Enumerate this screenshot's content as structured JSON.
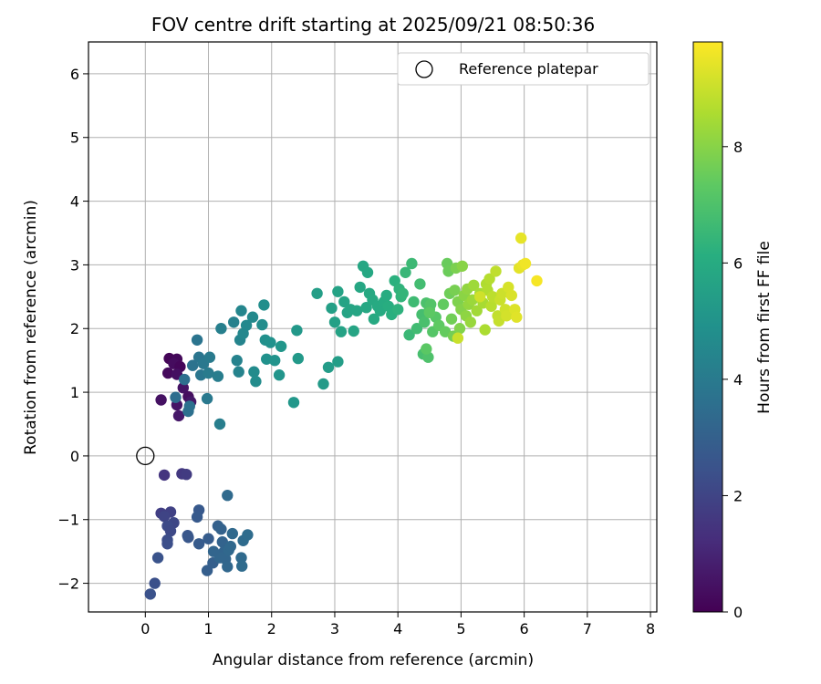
{
  "chart_data": {
    "type": "scatter",
    "title": "FOV centre drift starting at 2025/09/21 08:50:36",
    "xlabel": "Angular distance from reference (arcmin)",
    "ylabel": "Rotation from reference (arcmin)",
    "colorbar_label": "Hours from first FF file",
    "xlim": [
      -0.9,
      8.1
    ],
    "ylim": [
      -2.45,
      6.5
    ],
    "x_ticks": [
      0,
      1,
      2,
      3,
      4,
      5,
      6,
      7,
      8
    ],
    "y_ticks": [
      -2,
      -1,
      0,
      1,
      2,
      3,
      4,
      5,
      6
    ],
    "x_tick_labels": [
      "0",
      "1",
      "2",
      "3",
      "4",
      "5",
      "6",
      "7",
      "8"
    ],
    "y_tick_labels": [
      "−2",
      "−1",
      "0",
      "1",
      "2",
      "3",
      "4",
      "5",
      "6"
    ],
    "colorbar_range": [
      0,
      9.8
    ],
    "colorbar_ticks": [
      0,
      2,
      4,
      6,
      8
    ],
    "colorbar_tick_labels": [
      "0",
      "2",
      "4",
      "6",
      "8"
    ],
    "colormap": "viridis",
    "grid": true,
    "legend": {
      "position": "top-right",
      "entries": [
        "Reference platepar"
      ]
    },
    "reference_point": {
      "x": 0,
      "y": 0,
      "label": "Reference platepar"
    },
    "series": [
      {
        "name": "FOV centre drift",
        "points": [
          [
            0.38,
            1.53,
            0.1
          ],
          [
            0.5,
            1.52,
            0.2
          ],
          [
            0.45,
            1.45,
            0.3
          ],
          [
            0.55,
            1.4,
            0.15
          ],
          [
            0.36,
            1.3,
            0.25
          ],
          [
            0.5,
            1.28,
            0.4
          ],
          [
            0.6,
            1.07,
            0.5
          ],
          [
            0.25,
            0.88,
            0.45
          ],
          [
            0.68,
            0.93,
            0.35
          ],
          [
            0.72,
            0.85,
            0.6
          ],
          [
            0.5,
            0.8,
            0.55
          ],
          [
            0.53,
            0.63,
            0.65
          ],
          [
            0.58,
            -0.28,
            1.6
          ],
          [
            0.65,
            -0.29,
            1.7
          ],
          [
            0.3,
            -0.3,
            1.5
          ],
          [
            0.4,
            -0.88,
            1.9
          ],
          [
            0.25,
            -0.9,
            1.8
          ],
          [
            0.3,
            -0.95,
            2.0
          ],
          [
            0.45,
            -1.05,
            2.1
          ],
          [
            0.35,
            -1.1,
            2.2
          ],
          [
            0.4,
            -1.18,
            2.15
          ],
          [
            0.35,
            -1.32,
            2.3
          ],
          [
            0.35,
            -1.38,
            2.35
          ],
          [
            0.2,
            -1.6,
            2.5
          ],
          [
            0.15,
            -2.0,
            2.4
          ],
          [
            0.08,
            -2.17,
            2.45
          ],
          [
            0.67,
            -1.25,
            2.6
          ],
          [
            0.68,
            -1.28,
            2.65
          ],
          [
            0.85,
            -0.85,
            2.7
          ],
          [
            0.82,
            -0.96,
            2.75
          ],
          [
            0.85,
            -1.38,
            2.8
          ],
          [
            1.0,
            -1.3,
            2.85
          ],
          [
            0.98,
            -1.8,
            2.9
          ],
          [
            1.07,
            -1.68,
            2.95
          ],
          [
            1.15,
            -1.1,
            3.0
          ],
          [
            1.2,
            -1.15,
            3.05
          ],
          [
            1.22,
            -1.35,
            3.1
          ],
          [
            1.25,
            -1.5,
            3.15
          ],
          [
            1.18,
            -1.6,
            3.2
          ],
          [
            1.27,
            -1.62,
            3.22
          ],
          [
            1.3,
            -1.74,
            3.25
          ],
          [
            1.32,
            -1.48,
            3.28
          ],
          [
            1.35,
            -1.42,
            3.3
          ],
          [
            1.38,
            -1.22,
            3.32
          ],
          [
            1.3,
            -0.62,
            3.35
          ],
          [
            1.52,
            -1.6,
            3.38
          ],
          [
            1.53,
            -1.73,
            3.4
          ],
          [
            1.55,
            -1.33,
            3.42
          ],
          [
            1.62,
            -1.24,
            3.45
          ],
          [
            1.08,
            -1.5,
            3.18
          ],
          [
            0.48,
            0.92,
            3.5
          ],
          [
            0.62,
            1.2,
            3.55
          ],
          [
            0.68,
            0.7,
            3.6
          ],
          [
            0.7,
            0.78,
            3.65
          ],
          [
            0.75,
            1.42,
            3.7
          ],
          [
            0.82,
            1.82,
            3.75
          ],
          [
            0.85,
            1.55,
            3.8
          ],
          [
            0.88,
            1.27,
            3.85
          ],
          [
            0.92,
            1.45,
            3.9
          ],
          [
            0.98,
            0.9,
            3.95
          ],
          [
            1.02,
            1.55,
            4.0
          ],
          [
            1.0,
            1.3,
            4.05
          ],
          [
            1.15,
            1.25,
            4.1
          ],
          [
            1.18,
            0.5,
            4.15
          ],
          [
            1.2,
            2.0,
            4.2
          ],
          [
            1.4,
            2.1,
            4.25
          ],
          [
            1.45,
            1.5,
            4.3
          ],
          [
            1.48,
            1.32,
            4.35
          ],
          [
            1.5,
            1.82,
            4.4
          ],
          [
            1.52,
            2.28,
            4.45
          ],
          [
            1.55,
            1.92,
            4.5
          ],
          [
            1.6,
            2.05,
            4.55
          ],
          [
            1.7,
            2.18,
            4.6
          ],
          [
            1.72,
            1.32,
            4.65
          ],
          [
            1.75,
            1.17,
            4.7
          ],
          [
            1.85,
            2.06,
            4.75
          ],
          [
            1.88,
            2.37,
            4.8
          ],
          [
            1.9,
            1.82,
            4.85
          ],
          [
            1.92,
            1.52,
            4.9
          ],
          [
            1.98,
            1.78,
            4.95
          ],
          [
            2.05,
            1.5,
            5.0
          ],
          [
            2.12,
            1.27,
            5.05
          ],
          [
            2.15,
            1.72,
            5.1
          ],
          [
            2.35,
            0.84,
            5.15
          ],
          [
            2.4,
            1.97,
            5.2
          ],
          [
            2.42,
            1.53,
            5.25
          ],
          [
            2.82,
            1.13,
            5.3
          ],
          [
            2.9,
            1.39,
            5.35
          ],
          [
            3.05,
            1.48,
            5.4
          ],
          [
            2.72,
            2.55,
            5.45
          ],
          [
            2.95,
            2.32,
            5.5
          ],
          [
            3.0,
            2.1,
            5.55
          ],
          [
            3.05,
            2.58,
            5.6
          ],
          [
            3.1,
            1.95,
            5.62
          ],
          [
            3.15,
            2.42,
            5.65
          ],
          [
            3.2,
            2.25,
            5.68
          ],
          [
            3.25,
            2.3,
            5.7
          ],
          [
            3.3,
            1.96,
            5.72
          ],
          [
            3.35,
            2.28,
            5.75
          ],
          [
            3.4,
            2.65,
            5.78
          ],
          [
            3.45,
            2.98,
            5.8
          ],
          [
            3.5,
            2.33,
            5.82
          ],
          [
            3.52,
            2.88,
            5.85
          ],
          [
            3.55,
            2.55,
            5.88
          ],
          [
            3.6,
            2.45,
            5.9
          ],
          [
            3.62,
            2.15,
            5.92
          ],
          [
            3.68,
            2.35,
            5.95
          ],
          [
            3.72,
            2.28,
            5.97
          ],
          [
            3.78,
            2.42,
            6.0
          ],
          [
            3.82,
            2.52,
            6.05
          ],
          [
            3.85,
            2.35,
            6.1
          ],
          [
            3.9,
            2.22,
            6.15
          ],
          [
            3.95,
            2.75,
            6.2
          ],
          [
            4.0,
            2.3,
            6.25
          ],
          [
            4.02,
            2.62,
            6.3
          ],
          [
            4.05,
            2.5,
            6.35
          ],
          [
            4.08,
            2.55,
            6.4
          ],
          [
            4.12,
            2.88,
            6.5
          ],
          [
            4.18,
            1.9,
            6.55
          ],
          [
            4.22,
            3.02,
            6.6
          ],
          [
            4.25,
            2.42,
            6.65
          ],
          [
            4.3,
            2.0,
            6.7
          ],
          [
            4.35,
            2.7,
            6.75
          ],
          [
            4.38,
            2.22,
            6.8
          ],
          [
            4.4,
            1.6,
            6.85
          ],
          [
            4.42,
            2.1,
            6.9
          ],
          [
            4.45,
            2.4,
            6.95
          ],
          [
            4.48,
            1.55,
            7.0
          ],
          [
            4.5,
            2.3,
            7.05
          ],
          [
            4.52,
            2.38,
            7.1
          ],
          [
            4.55,
            1.95,
            7.15
          ],
          [
            4.6,
            2.18,
            7.2
          ],
          [
            4.45,
            1.68,
            7.25
          ],
          [
            4.5,
            2.25,
            7.3
          ],
          [
            4.65,
            2.05,
            7.35
          ],
          [
            4.72,
            2.38,
            7.4
          ],
          [
            4.75,
            1.95,
            7.45
          ],
          [
            4.78,
            3.02,
            7.5
          ],
          [
            4.8,
            2.9,
            7.55
          ],
          [
            4.82,
            2.55,
            7.6
          ],
          [
            4.85,
            2.15,
            7.65
          ],
          [
            4.88,
            1.88,
            7.7
          ],
          [
            4.9,
            2.6,
            7.75
          ],
          [
            4.92,
            2.95,
            7.8
          ],
          [
            4.95,
            2.42,
            7.85
          ],
          [
            4.98,
            2.0,
            7.9
          ],
          [
            5.0,
            2.3,
            7.95
          ],
          [
            5.02,
            2.98,
            8.0
          ],
          [
            5.05,
            2.52,
            8.05
          ],
          [
            5.08,
            2.2,
            8.1
          ],
          [
            5.1,
            2.62,
            8.15
          ],
          [
            5.12,
            2.38,
            8.2
          ],
          [
            5.15,
            2.1,
            8.25
          ],
          [
            5.18,
            2.45,
            8.3
          ],
          [
            5.2,
            2.68,
            8.35
          ],
          [
            5.25,
            2.28,
            8.4
          ],
          [
            5.3,
            2.55,
            8.45
          ],
          [
            5.35,
            2.4,
            8.5
          ],
          [
            5.38,
            1.98,
            8.55
          ],
          [
            5.4,
            2.7,
            8.6
          ],
          [
            5.42,
            2.6,
            8.65
          ],
          [
            5.45,
            2.78,
            8.7
          ],
          [
            5.48,
            2.35,
            8.75
          ],
          [
            5.5,
            2.5,
            8.8
          ],
          [
            5.55,
            2.9,
            8.85
          ],
          [
            5.58,
            2.2,
            8.9
          ],
          [
            5.6,
            2.12,
            8.95
          ],
          [
            5.62,
            2.45,
            9.0
          ],
          [
            5.65,
            2.55,
            9.05
          ],
          [
            5.7,
            2.3,
            9.1
          ],
          [
            5.72,
            2.2,
            9.15
          ],
          [
            5.75,
            2.65,
            9.2
          ],
          [
            5.8,
            2.52,
            9.25
          ],
          [
            5.85,
            2.3,
            9.3
          ],
          [
            5.88,
            2.18,
            9.35
          ],
          [
            5.92,
            2.95,
            9.4
          ],
          [
            5.95,
            3.42,
            9.45
          ],
          [
            5.98,
            3.0,
            9.5
          ],
          [
            6.02,
            3.02,
            9.6
          ],
          [
            6.2,
            2.75,
            9.7
          ],
          [
            4.95,
            1.85,
            9.0
          ],
          [
            5.3,
            2.5,
            9.1
          ]
        ]
      }
    ]
  }
}
